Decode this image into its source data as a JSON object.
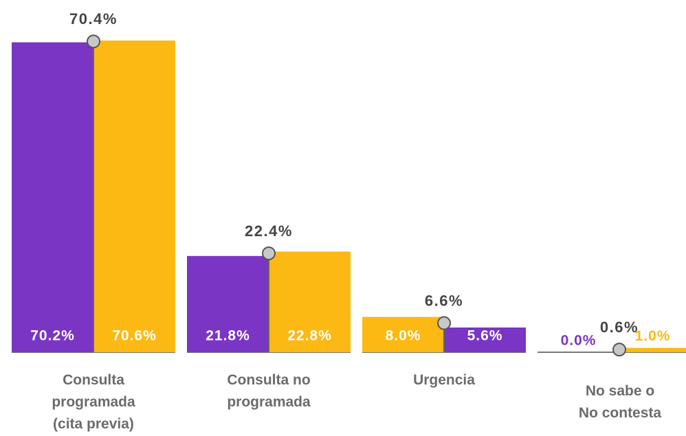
{
  "chart_data": {
    "type": "bar",
    "categories": [
      "Consulta programada (cita previa)",
      "Consulta no programada",
      "Urgencia",
      "No sabe o No contesta"
    ],
    "series": [
      {
        "color": "#7b35c4",
        "values": [
          70.2,
          21.8,
          5.6,
          0.0
        ],
        "value_labels": [
          "70.2%",
          "21.8%",
          "5.6%",
          "0.0%"
        ]
      },
      {
        "color": "#fdb913",
        "values": [
          70.6,
          22.8,
          8.0,
          1.0
        ],
        "value_labels": [
          "70.6%",
          "22.8%",
          "8.0%",
          "1.0%"
        ]
      }
    ],
    "total": {
      "color": "#c8c8c8",
      "values": [
        70.4,
        22.4,
        6.6,
        0.6
      ],
      "value_labels": [
        "70.4%",
        "22.4%",
        "6.6%",
        "0.6%"
      ]
    }
  }
}
